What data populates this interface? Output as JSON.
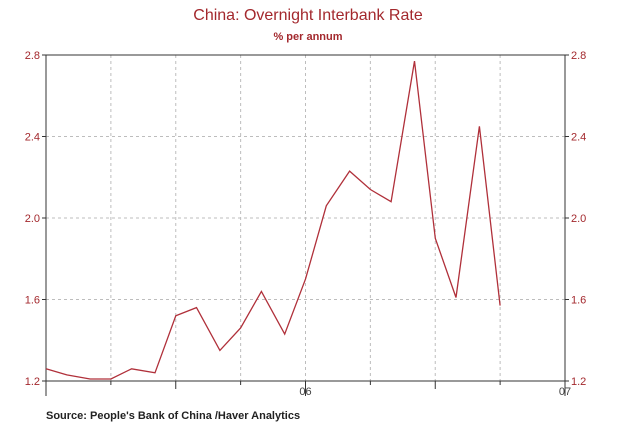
{
  "chart_data": {
    "type": "line",
    "title": "China: Overnight Interbank Rate",
    "subtitle": "% per annum",
    "source": "Source:   People's Bank of China /Haver Analytics",
    "y_ticks": [
      "1.2",
      "1.6",
      "2.0",
      "2.4",
      "2.8"
    ],
    "y_tick_values": [
      1.2,
      1.6,
      2.0,
      2.4,
      2.8
    ],
    "ylim": [
      1.2,
      2.8
    ],
    "x_tick_labels": [
      {
        "label": "06",
        "value": 2006.0
      },
      {
        "label": "07",
        "value": 2007.0
      }
    ],
    "xlim": [
      2005.0,
      2007.0
    ],
    "grid": true,
    "series": [
      {
        "color": "#b0303a",
        "points": [
          {
            "x": 2005.0,
            "y": 1.26
          },
          {
            "x": 2005.08,
            "y": 1.23
          },
          {
            "x": 2005.17,
            "y": 1.21
          },
          {
            "x": 2005.25,
            "y": 1.21
          },
          {
            "x": 2005.33,
            "y": 1.26
          },
          {
            "x": 2005.42,
            "y": 1.24
          },
          {
            "x": 2005.5,
            "y": 1.52
          },
          {
            "x": 2005.58,
            "y": 1.56
          },
          {
            "x": 2005.67,
            "y": 1.35
          },
          {
            "x": 2005.75,
            "y": 1.46
          },
          {
            "x": 2005.83,
            "y": 1.64
          },
          {
            "x": 2005.92,
            "y": 1.43
          },
          {
            "x": 2006.0,
            "y": 1.7
          },
          {
            "x": 2006.08,
            "y": 2.06
          },
          {
            "x": 2006.17,
            "y": 2.23
          },
          {
            "x": 2006.25,
            "y": 2.14
          },
          {
            "x": 2006.33,
            "y": 2.08
          },
          {
            "x": 2006.42,
            "y": 2.77
          },
          {
            "x": 2006.5,
            "y": 1.9
          },
          {
            "x": 2006.58,
            "y": 1.61
          },
          {
            "x": 2006.67,
            "y": 2.45
          },
          {
            "x": 2006.75,
            "y": 1.57
          }
        ]
      }
    ]
  }
}
